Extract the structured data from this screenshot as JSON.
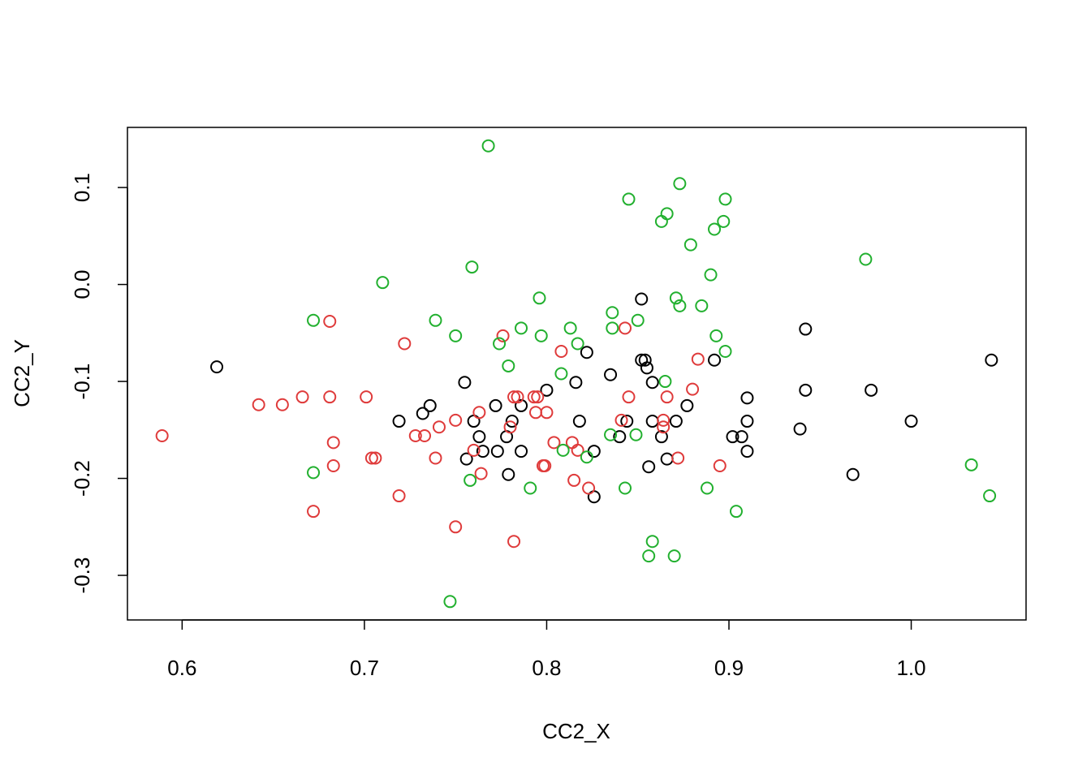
{
  "chart_data": {
    "type": "scatter",
    "title": "",
    "xlabel": "CC2_X",
    "ylabel": "CC2_Y",
    "xlim": [
      0.57,
      1.063
    ],
    "ylim": [
      -0.346,
      0.162
    ],
    "x_ticks": [
      0.6,
      0.7,
      0.8,
      0.9,
      1.0
    ],
    "x_tick_labels": [
      "0.6",
      "0.7",
      "0.8",
      "0.9",
      "1.0"
    ],
    "y_ticks": [
      -0.3,
      -0.2,
      -0.1,
      0.0,
      0.1
    ],
    "y_tick_labels": [
      "-0.3",
      "-0.2",
      "-0.1",
      "0.0",
      "0.1"
    ],
    "grid": false,
    "legend": "none",
    "series": [
      {
        "color": "#000000",
        "x": [
          0.619,
          0.719,
          0.732,
          0.736,
          0.755,
          0.756,
          0.76,
          0.763,
          0.765,
          0.772,
          0.773,
          0.778,
          0.779,
          0.781,
          0.786,
          0.786,
          0.8,
          0.816,
          0.818,
          0.822,
          0.826,
          0.826,
          0.835,
          0.84,
          0.844,
          0.852,
          0.852,
          0.854,
          0.855,
          0.856,
          0.858,
          0.858,
          0.863,
          0.866,
          0.871,
          0.877,
          0.892,
          0.902,
          0.907,
          0.91,
          0.91,
          0.91,
          0.939,
          0.942,
          0.942,
          0.968,
          0.978,
          1.0,
          1.044
        ],
        "y": [
          -0.085,
          -0.141,
          -0.133,
          -0.125,
          -0.101,
          -0.18,
          -0.141,
          -0.157,
          -0.172,
          -0.125,
          -0.172,
          -0.157,
          -0.196,
          -0.141,
          -0.125,
          -0.172,
          -0.109,
          -0.101,
          -0.141,
          -0.07,
          -0.172,
          -0.219,
          -0.093,
          -0.157,
          -0.141,
          -0.015,
          -0.078,
          -0.078,
          -0.086,
          -0.188,
          -0.101,
          -0.141,
          -0.157,
          -0.18,
          -0.141,
          -0.125,
          -0.078,
          -0.157,
          -0.157,
          -0.117,
          -0.141,
          -0.172,
          -0.149,
          -0.046,
          -0.109,
          -0.196,
          -0.109,
          -0.141,
          -0.078
        ]
      },
      {
        "color": "#df3b3b",
        "x": [
          0.589,
          0.642,
          0.655,
          0.666,
          0.681,
          0.681,
          0.683,
          0.683,
          0.672,
          0.701,
          0.704,
          0.706,
          0.719,
          0.722,
          0.728,
          0.733,
          0.739,
          0.741,
          0.75,
          0.75,
          0.76,
          0.763,
          0.764,
          0.776,
          0.78,
          0.782,
          0.782,
          0.784,
          0.793,
          0.794,
          0.795,
          0.798,
          0.799,
          0.8,
          0.804,
          0.808,
          0.814,
          0.815,
          0.817,
          0.823,
          0.841,
          0.843,
          0.845,
          0.864,
          0.864,
          0.866,
          0.872,
          0.88,
          0.883,
          0.895
        ],
        "y": [
          -0.156,
          -0.124,
          -0.124,
          -0.116,
          -0.038,
          -0.116,
          -0.163,
          -0.187,
          -0.234,
          -0.116,
          -0.179,
          -0.179,
          -0.218,
          -0.061,
          -0.156,
          -0.156,
          -0.179,
          -0.147,
          -0.14,
          -0.25,
          -0.171,
          -0.132,
          -0.195,
          -0.053,
          -0.147,
          -0.116,
          -0.265,
          -0.116,
          -0.116,
          -0.132,
          -0.116,
          -0.187,
          -0.187,
          -0.132,
          -0.163,
          -0.069,
          -0.163,
          -0.202,
          -0.171,
          -0.21,
          -0.14,
          -0.045,
          -0.116,
          -0.14,
          -0.147,
          -0.116,
          -0.179,
          -0.108,
          -0.077,
          -0.187
        ]
      },
      {
        "color": "#22b02f",
        "x": [
          0.672,
          0.672,
          0.71,
          0.739,
          0.747,
          0.75,
          0.758,
          0.759,
          0.768,
          0.774,
          0.779,
          0.786,
          0.791,
          0.796,
          0.797,
          0.808,
          0.809,
          0.813,
          0.817,
          0.822,
          0.835,
          0.836,
          0.836,
          0.843,
          0.845,
          0.849,
          0.85,
          0.856,
          0.858,
          0.863,
          0.865,
          0.866,
          0.87,
          0.871,
          0.873,
          0.873,
          0.879,
          0.885,
          0.888,
          0.89,
          0.892,
          0.893,
          0.897,
          0.898,
          0.898,
          0.904,
          0.975,
          1.033,
          1.043
        ],
        "y": [
          -0.037,
          -0.194,
          0.002,
          -0.037,
          -0.327,
          -0.053,
          -0.202,
          0.018,
          0.143,
          -0.061,
          -0.084,
          -0.045,
          -0.21,
          -0.014,
          -0.053,
          -0.092,
          -0.171,
          -0.045,
          -0.061,
          -0.178,
          -0.155,
          -0.029,
          -0.045,
          -0.21,
          0.088,
          -0.155,
          -0.037,
          -0.28,
          -0.265,
          0.065,
          -0.1,
          0.073,
          -0.28,
          -0.014,
          -0.022,
          0.104,
          0.041,
          -0.022,
          -0.21,
          0.01,
          0.057,
          -0.053,
          0.065,
          -0.069,
          0.088,
          -0.234,
          0.026,
          -0.186,
          -0.218
        ]
      }
    ]
  }
}
